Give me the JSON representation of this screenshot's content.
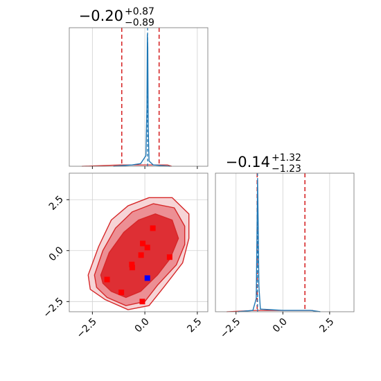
{
  "chart_data": [
    {
      "type": "line",
      "panel": "marginal-param-1",
      "title_value": "−0.20",
      "title_plus": "+0.87",
      "title_minus": "−0.89",
      "xlim": [
        -3.6,
        3.0
      ],
      "grid": true,
      "red_dashed_lines_x": [
        -1.1,
        0.68
      ],
      "blue_dashed_line_x": 0.13,
      "x_ticks": [
        -2.5,
        0.0,
        2.5
      ],
      "histogram": {
        "x": [
          -1.5,
          -0.6,
          -0.2,
          0.05,
          0.1,
          0.12,
          0.14,
          0.16,
          0.2,
          0.4,
          1.2
        ],
        "y": [
          0.0,
          0.01,
          0.02,
          0.08,
          0.45,
          1.0,
          0.9,
          0.3,
          0.04,
          0.01,
          0.0
        ]
      },
      "colors": {
        "hist": "#d62728",
        "spike": "#1f77b4",
        "truth": "#1f77b4"
      }
    },
    {
      "type": "line",
      "panel": "marginal-param-2",
      "title_value": "−0.14",
      "title_plus": "+1.32",
      "title_minus": "−1.23",
      "xlim": [
        -3.6,
        3.8
      ],
      "grid": true,
      "red_dashed_lines_x": [
        -1.37,
        1.18
      ],
      "blue_dashed_line_x": -1.35,
      "x_ticks": [
        -2.5,
        0.0,
        2.5
      ],
      "x_tick_labels": [
        "−2.5",
        "0.0",
        "2.5"
      ],
      "histogram": {
        "x": [
          -2.4,
          -1.6,
          -1.42,
          -1.38,
          -1.35,
          -1.32,
          -1.28,
          -1.2,
          0.0,
          1.5,
          2.0
        ],
        "y": [
          0.0,
          0.01,
          0.1,
          0.6,
          1.0,
          0.7,
          0.2,
          0.02,
          0.01,
          0.01,
          0.0
        ]
      },
      "colors": {
        "hist": "#d62728",
        "spike": "#1f77b4"
      }
    },
    {
      "type": "scatter",
      "panel": "joint-param-1-vs-param-2",
      "xlim": [
        -3.6,
        3.0
      ],
      "ylim": [
        -3.0,
        3.8
      ],
      "grid": true,
      "x_ticks": [
        -2.5,
        0.0,
        2.5
      ],
      "y_ticks": [
        -2.5,
        0.0,
        2.5
      ],
      "x_tick_labels": [
        "−2.5",
        "0.0",
        "2.5"
      ],
      "y_tick_labels": [
        "−2.5",
        "0.0",
        "2.5"
      ],
      "red_squares": [
        {
          "x": 0.38,
          "y": 1.1
        },
        {
          "x": -0.1,
          "y": 0.35
        },
        {
          "x": 0.12,
          "y": 0.15
        },
        {
          "x": -0.18,
          "y": -0.22
        },
        {
          "x": 1.18,
          "y": -0.32
        },
        {
          "x": -0.62,
          "y": -0.68
        },
        {
          "x": -0.6,
          "y": -0.83
        },
        {
          "x": -1.8,
          "y": -1.42
        },
        {
          "x": -1.12,
          "y": -2.05
        },
        {
          "x": -0.12,
          "y": -2.5
        }
      ],
      "blue_square": {
        "x": 0.12,
        "y": -1.35
      },
      "contours": [
        {
          "level": "outer",
          "fill": "#f6d4d6",
          "path": [
            [
              -2.7,
              -1.2
            ],
            [
              -2.2,
              0.2
            ],
            [
              -1.6,
              1.5
            ],
            [
              -0.8,
              2.2
            ],
            [
              0.2,
              2.6
            ],
            [
              1.3,
              2.6
            ],
            [
              2.1,
              1.8
            ],
            [
              2.1,
              0.6
            ],
            [
              1.8,
              -0.6
            ],
            [
              0.9,
              -1.8
            ],
            [
              0.2,
              -2.7
            ],
            [
              -0.8,
              -2.9
            ],
            [
              -1.9,
              -2.4
            ],
            [
              -2.6,
              -1.9
            ]
          ]
        },
        {
          "level": "middle",
          "fill": "#ec8f94",
          "path": [
            [
              -2.4,
              -1.2
            ],
            [
              -2.0,
              0.0
            ],
            [
              -1.4,
              1.1
            ],
            [
              -0.6,
              1.9
            ],
            [
              0.4,
              2.3
            ],
            [
              1.4,
              2.1
            ],
            [
              1.9,
              1.2
            ],
            [
              1.9,
              0.3
            ],
            [
              1.5,
              -0.7
            ],
            [
              0.6,
              -1.7
            ],
            [
              0.0,
              -2.5
            ],
            [
              -0.9,
              -2.7
            ],
            [
              -1.8,
              -2.3
            ],
            [
              -2.3,
              -1.8
            ]
          ]
        },
        {
          "level": "inner",
          "fill": "#de2f34",
          "path": [
            [
              -2.1,
              -1.2
            ],
            [
              -1.7,
              -0.1
            ],
            [
              -1.0,
              0.9
            ],
            [
              -0.3,
              1.5
            ],
            [
              0.5,
              1.8
            ],
            [
              1.3,
              1.5
            ],
            [
              1.6,
              0.6
            ],
            [
              1.2,
              -0.4
            ],
            [
              0.6,
              -1.2
            ],
            [
              -0.2,
              -2.0
            ],
            [
              -0.9,
              -2.3
            ],
            [
              -1.6,
              -2.0
            ],
            [
              -2.0,
              -1.6
            ]
          ]
        }
      ],
      "colors": {
        "contour_line": "#d62728",
        "points": "#ff0000",
        "truth": "#0000ff"
      }
    }
  ]
}
